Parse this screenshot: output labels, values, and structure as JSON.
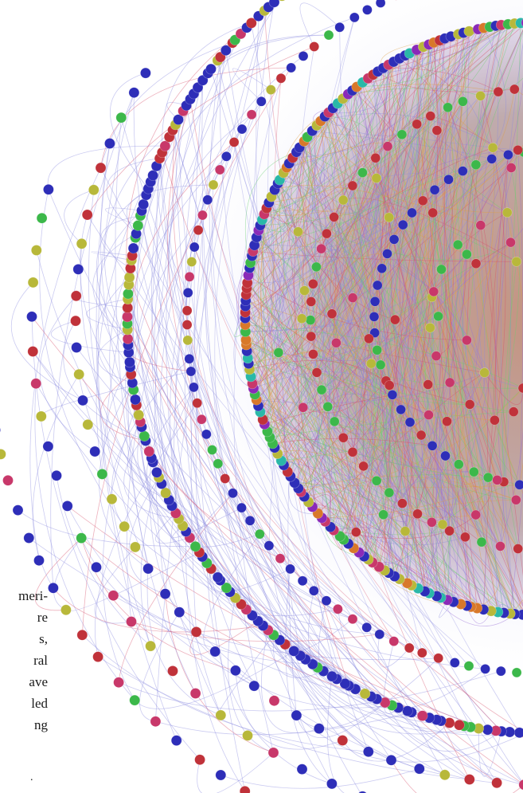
{
  "text_snippet": {
    "lines": [
      "meri-",
      "re",
      "s,",
      "ral",
      "ave",
      "led",
      "ng"
    ],
    "trailing_mark": "."
  },
  "network_figure": {
    "node_colors": {
      "blue": "#2e2eb8",
      "red": "#c0323a",
      "magenta": "#c8386a",
      "green": "#3cb84a",
      "yellow": "#b8b83a",
      "teal": "#2ab8a8",
      "purple": "#8a2ab8",
      "orange": "#d8782a"
    },
    "edge_colors": {
      "outer": "#8c8ce0",
      "inner_red": "#d8506a",
      "inner_green": "#6ad070",
      "inner_orange": "#e0a040",
      "inner_purple": "#9a70d8"
    },
    "core_fill": "#b89a8c"
  }
}
